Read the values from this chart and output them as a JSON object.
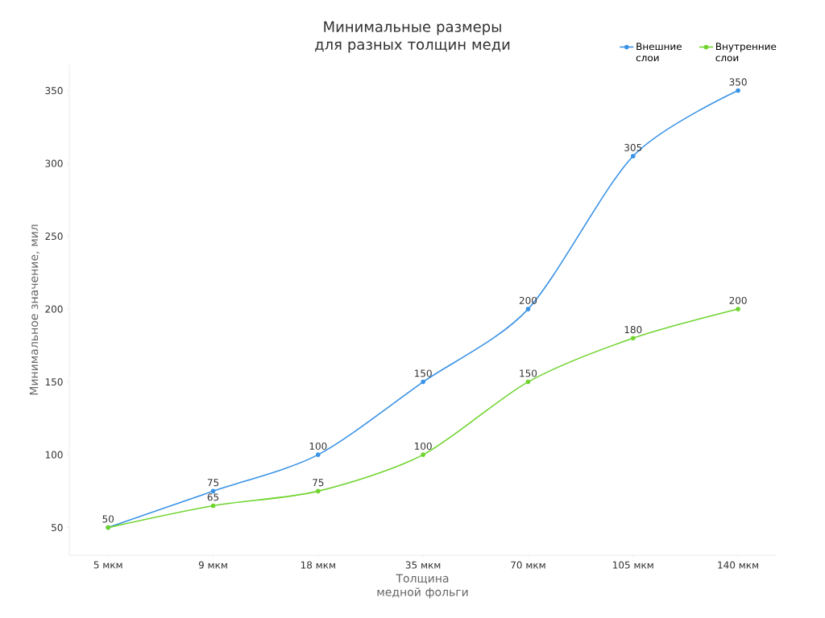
{
  "chart_data": {
    "type": "line",
    "title": "Минимальные размеры для разных толщин меди",
    "xlabel": "Толщина медной фольги",
    "ylabel": "Минимальное значение, мил",
    "categories": [
      "5 мкм",
      "9 мкм",
      "18 мкм",
      "35 мкм",
      "70 мкм",
      "105 мкм",
      "140 мкм"
    ],
    "series": [
      {
        "name": "Внешние слои",
        "color": "#3a93e6",
        "values": [
          50,
          75,
          100,
          150,
          200,
          305,
          350
        ],
        "value_labels": [
          "50",
          "75",
          "100",
          "150",
          "200",
          "305",
          "350"
        ]
      },
      {
        "name": "Внутренние слои",
        "color": "#6fd42e",
        "values": [
          50,
          65,
          75,
          100,
          150,
          180,
          200
        ],
        "value_labels": [
          null,
          "65",
          "75",
          "100",
          "150",
          "180",
          "200"
        ]
      }
    ],
    "ylim": [
      31,
      368
    ],
    "yticks": [
      50,
      100,
      150,
      200,
      250,
      300,
      350
    ],
    "legend": "top right",
    "marker": "circle",
    "grid": false
  }
}
